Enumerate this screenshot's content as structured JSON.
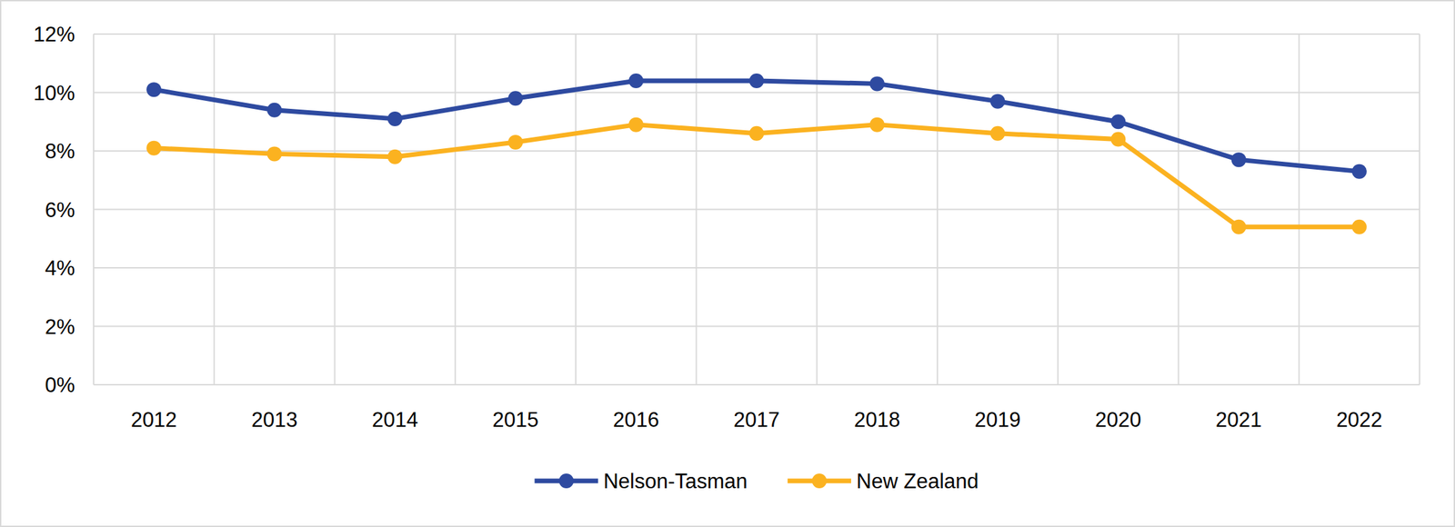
{
  "chart_data": {
    "type": "line",
    "categories": [
      "2012",
      "2013",
      "2014",
      "2015",
      "2016",
      "2017",
      "2018",
      "2019",
      "2020",
      "2021",
      "2022"
    ],
    "series": [
      {
        "name": "Nelson-Tasman",
        "color": "#2e4aa0",
        "marker": "circle",
        "values": [
          10.1,
          9.4,
          9.1,
          9.8,
          10.4,
          10.4,
          10.3,
          9.7,
          9.0,
          7.7,
          7.3
        ]
      },
      {
        "name": "New Zealand",
        "color": "#fbb220",
        "marker": "circle",
        "values": [
          8.1,
          7.9,
          7.8,
          8.3,
          8.9,
          8.6,
          8.9,
          8.6,
          8.4,
          5.4,
          5.4
        ]
      }
    ],
    "ylim": [
      0,
      12
    ],
    "yticks": [
      {
        "value": 0,
        "label": "0%"
      },
      {
        "value": 2,
        "label": "2%"
      },
      {
        "value": 4,
        "label": "4%"
      },
      {
        "value": 6,
        "label": "6%"
      },
      {
        "value": 8,
        "label": "8%"
      },
      {
        "value": 10,
        "label": "10%"
      },
      {
        "value": 12,
        "label": "12%"
      }
    ],
    "grid": true,
    "legend": "bottom"
  }
}
